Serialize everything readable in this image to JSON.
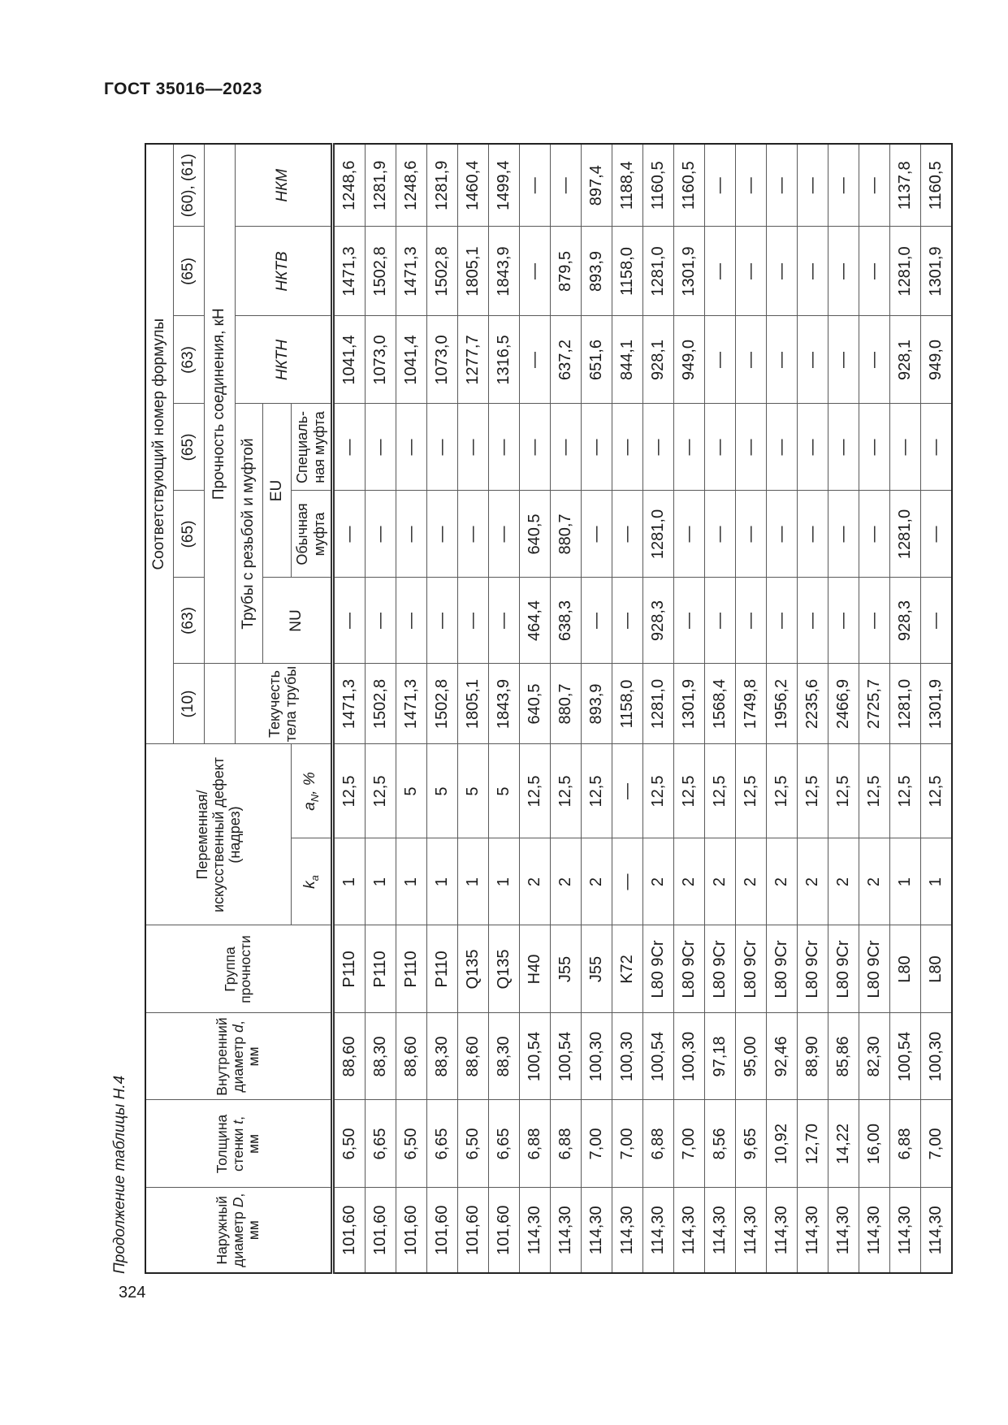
{
  "page": {
    "standard_title": "ГОСТ 35016—2023",
    "table_caption": "Продолжение таблицы Н.4",
    "page_number": "324"
  },
  "table": {
    "header": {
      "outer": {
        "l1": "Наружный",
        "l2_pre": "диаметр ",
        "l2_var": "D",
        "l2_post": ",",
        "l3": "мм"
      },
      "wall": {
        "l1": "Толщина",
        "l2_pre": "стенки ",
        "l2_var": "t",
        "l2_post": ",",
        "l3": "мм"
      },
      "inner": {
        "l1": "Внутренний",
        "l2_pre": "диаметр ",
        "l2_var": "d",
        "l2_post": ",",
        "l3": "мм"
      },
      "group": {
        "l1": "Группа",
        "l2": "прочности"
      },
      "variable": {
        "l1": "Переменная/",
        "l2": "искусственный дефект",
        "l3": "(надрез)"
      },
      "ka": {
        "var": "k",
        "sub": "а"
      },
      "an": {
        "var": "a",
        "sub": "N",
        "post": ", %"
      },
      "formula_title": "Соответствующий номер формулы",
      "formulas": [
        "(10)",
        "(63)",
        "(65)",
        "(65)",
        "(63)",
        "(65)",
        "(60), (61)"
      ],
      "yield_body": {
        "l1": "Текучесть",
        "l2": "тела трубы"
      },
      "joint_strength": "Прочность соединения, кН",
      "threaded": "Трубы с резьбой и муфтой",
      "nu": "NU",
      "eu": "EU",
      "regular_coupling": {
        "l1": "Обычная",
        "l2": "муфта"
      },
      "special_coupling": {
        "l1": "Специаль-",
        "l2": "ная муфта"
      },
      "nktn": "НКТН",
      "nktv": "НКТВ",
      "nkm": "НКМ"
    },
    "rows": [
      [
        "101,60",
        "6,50",
        "88,60",
        "P110",
        "1",
        "12,5",
        "1471,3",
        "—",
        "—",
        "—",
        "1041,4",
        "1471,3",
        "1248,6"
      ],
      [
        "101,60",
        "6,65",
        "88,30",
        "P110",
        "1",
        "12,5",
        "1502,8",
        "—",
        "—",
        "—",
        "1073,0",
        "1502,8",
        "1281,9"
      ],
      [
        "101,60",
        "6,50",
        "88,60",
        "P110",
        "1",
        "5",
        "1471,3",
        "—",
        "—",
        "—",
        "1041,4",
        "1471,3",
        "1248,6"
      ],
      [
        "101,60",
        "6,65",
        "88,30",
        "P110",
        "1",
        "5",
        "1502,8",
        "—",
        "—",
        "—",
        "1073,0",
        "1502,8",
        "1281,9"
      ],
      [
        "101,60",
        "6,50",
        "88,60",
        "Q135",
        "1",
        "5",
        "1805,1",
        "—",
        "—",
        "—",
        "1277,7",
        "1805,1",
        "1460,4"
      ],
      [
        "101,60",
        "6,65",
        "88,30",
        "Q135",
        "1",
        "5",
        "1843,9",
        "—",
        "—",
        "—",
        "1316,5",
        "1843,9",
        "1499,4"
      ],
      [
        "114,30",
        "6,88",
        "100,54",
        "H40",
        "2",
        "12,5",
        "640,5",
        "464,4",
        "640,5",
        "—",
        "—",
        "—",
        "—"
      ],
      [
        "114,30",
        "6,88",
        "100,54",
        "J55",
        "2",
        "12,5",
        "880,7",
        "638,3",
        "880,7",
        "—",
        "637,2",
        "879,5",
        "—"
      ],
      [
        "114,30",
        "7,00",
        "100,30",
        "J55",
        "2",
        "12,5",
        "893,9",
        "—",
        "—",
        "—",
        "651,6",
        "893,9",
        "897,4"
      ],
      [
        "114,30",
        "7,00",
        "100,30",
        "K72",
        "—",
        "—",
        "1158,0",
        "—",
        "—",
        "—",
        "844,1",
        "1158,0",
        "1188,4"
      ],
      [
        "114,30",
        "6,88",
        "100,54",
        "L80 9Cr",
        "2",
        "12,5",
        "1281,0",
        "928,3",
        "1281,0",
        "—",
        "928,1",
        "1281,0",
        "1160,5"
      ],
      [
        "114,30",
        "7,00",
        "100,30",
        "L80 9Cr",
        "2",
        "12,5",
        "1301,9",
        "—",
        "—",
        "—",
        "949,0",
        "1301,9",
        "1160,5"
      ],
      [
        "114,30",
        "8,56",
        "97,18",
        "L80 9Cr",
        "2",
        "12,5",
        "1568,4",
        "—",
        "—",
        "—",
        "—",
        "—",
        "—"
      ],
      [
        "114,30",
        "9,65",
        "95,00",
        "L80 9Cr",
        "2",
        "12,5",
        "1749,8",
        "—",
        "—",
        "—",
        "—",
        "—",
        "—"
      ],
      [
        "114,30",
        "10,92",
        "92,46",
        "L80 9Cr",
        "2",
        "12,5",
        "1956,2",
        "—",
        "—",
        "—",
        "—",
        "—",
        "—"
      ],
      [
        "114,30",
        "12,70",
        "88,90",
        "L80 9Cr",
        "2",
        "12,5",
        "2235,6",
        "—",
        "—",
        "—",
        "—",
        "—",
        "—"
      ],
      [
        "114,30",
        "14,22",
        "85,86",
        "L80 9Cr",
        "2",
        "12,5",
        "2466,9",
        "—",
        "—",
        "—",
        "—",
        "—",
        "—"
      ],
      [
        "114,30",
        "16,00",
        "82,30",
        "L80 9Cr",
        "2",
        "12,5",
        "2725,7",
        "—",
        "—",
        "—",
        "—",
        "—",
        "—"
      ],
      [
        "114,30",
        "6,88",
        "100,54",
        "L80",
        "1",
        "12,5",
        "1281,0",
        "928,3",
        "1281,0",
        "—",
        "928,1",
        "1281,0",
        "1137,8"
      ],
      [
        "114,30",
        "7,00",
        "100,30",
        "L80",
        "1",
        "12,5",
        "1301,9",
        "—",
        "—",
        "—",
        "949,0",
        "1301,9",
        "1160,5"
      ]
    ]
  }
}
